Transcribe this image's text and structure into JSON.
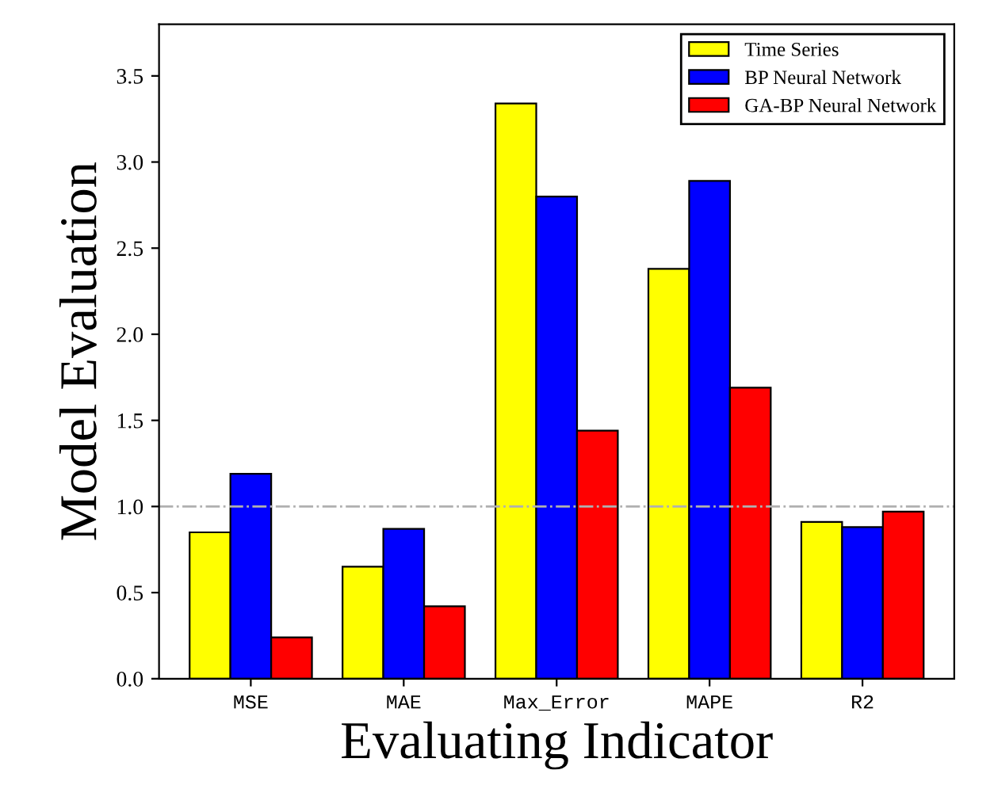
{
  "chart_data": {
    "type": "bar",
    "xlabel": "Evaluating Indicator",
    "ylabel": "Model Evaluation",
    "categories": [
      "MSE",
      "MAE",
      "Max_Error",
      "MAPE",
      "R2"
    ],
    "series": [
      {
        "name": "Time Series",
        "color": "#ffff00",
        "values": [
          0.85,
          0.65,
          3.34,
          2.38,
          0.91
        ]
      },
      {
        "name": "BP Neural Network",
        "color": "#0000ff",
        "values": [
          1.19,
          0.87,
          2.8,
          2.89,
          0.88
        ]
      },
      {
        "name": "GA-BP Neural Network",
        "color": "#ff0000",
        "values": [
          0.24,
          0.42,
          1.44,
          1.69,
          0.97
        ]
      }
    ],
    "ylim": [
      0,
      3.8
    ],
    "yticks": [
      {
        "value": 0,
        "label": "0.0"
      },
      0.5,
      {
        "value": 1,
        "label": "1.0"
      },
      1.5,
      {
        "value": 2,
        "label": "2.0"
      },
      2.5,
      {
        "value": 3,
        "label": "3.0"
      },
      3.5
    ],
    "ref_lines": [
      {
        "axis": "y",
        "value": 1.0,
        "color": "#b0b0b0",
        "line_style": "dashdot"
      }
    ],
    "grid": false,
    "legend": "top right"
  }
}
